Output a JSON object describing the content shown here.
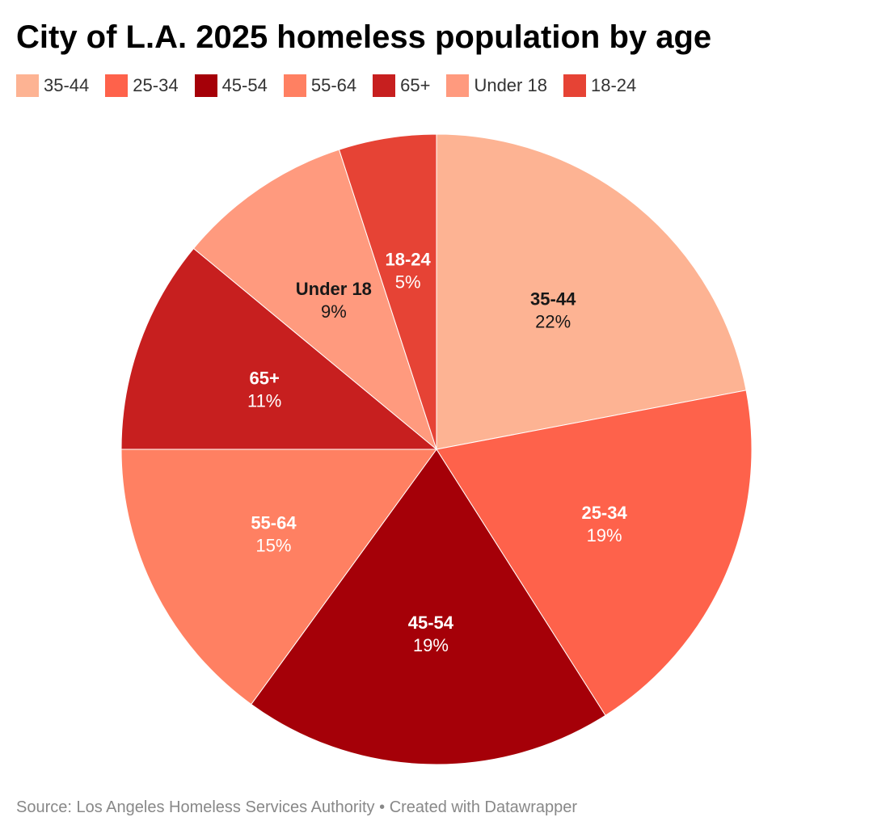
{
  "title": "City of L.A. 2025 homeless population by age",
  "source_text": "Source: Los Angeles Homeless Services Authority",
  "separator": "•",
  "credit_text": "Created with Datawrapper",
  "chart_data": {
    "type": "pie",
    "title": "City of L.A. 2025 homeless population by age",
    "legend_position": "top-left",
    "slices": [
      {
        "label": "35-44",
        "value": 22,
        "value_label": "22%",
        "color": "#fdb393",
        "text_color": "#181818"
      },
      {
        "label": "25-34",
        "value": 19,
        "value_label": "19%",
        "color": "#fe624b",
        "text_color": "#ffffff"
      },
      {
        "label": "45-54",
        "value": 19,
        "value_label": "19%",
        "color": "#a50008",
        "text_color": "#ffffff"
      },
      {
        "label": "55-64",
        "value": 15,
        "value_label": "15%",
        "color": "#ff8062",
        "text_color": "#ffffff"
      },
      {
        "label": "65+",
        "value": 11,
        "value_label": "11%",
        "color": "#c71f1f",
        "text_color": "#ffffff"
      },
      {
        "label": "Under 18",
        "value": 9,
        "value_label": "9%",
        "color": "#ff9a7e",
        "text_color": "#181818"
      },
      {
        "label": "18-24",
        "value": 5,
        "value_label": "5%",
        "color": "#e64335",
        "text_color": "#ffffff"
      }
    ]
  }
}
